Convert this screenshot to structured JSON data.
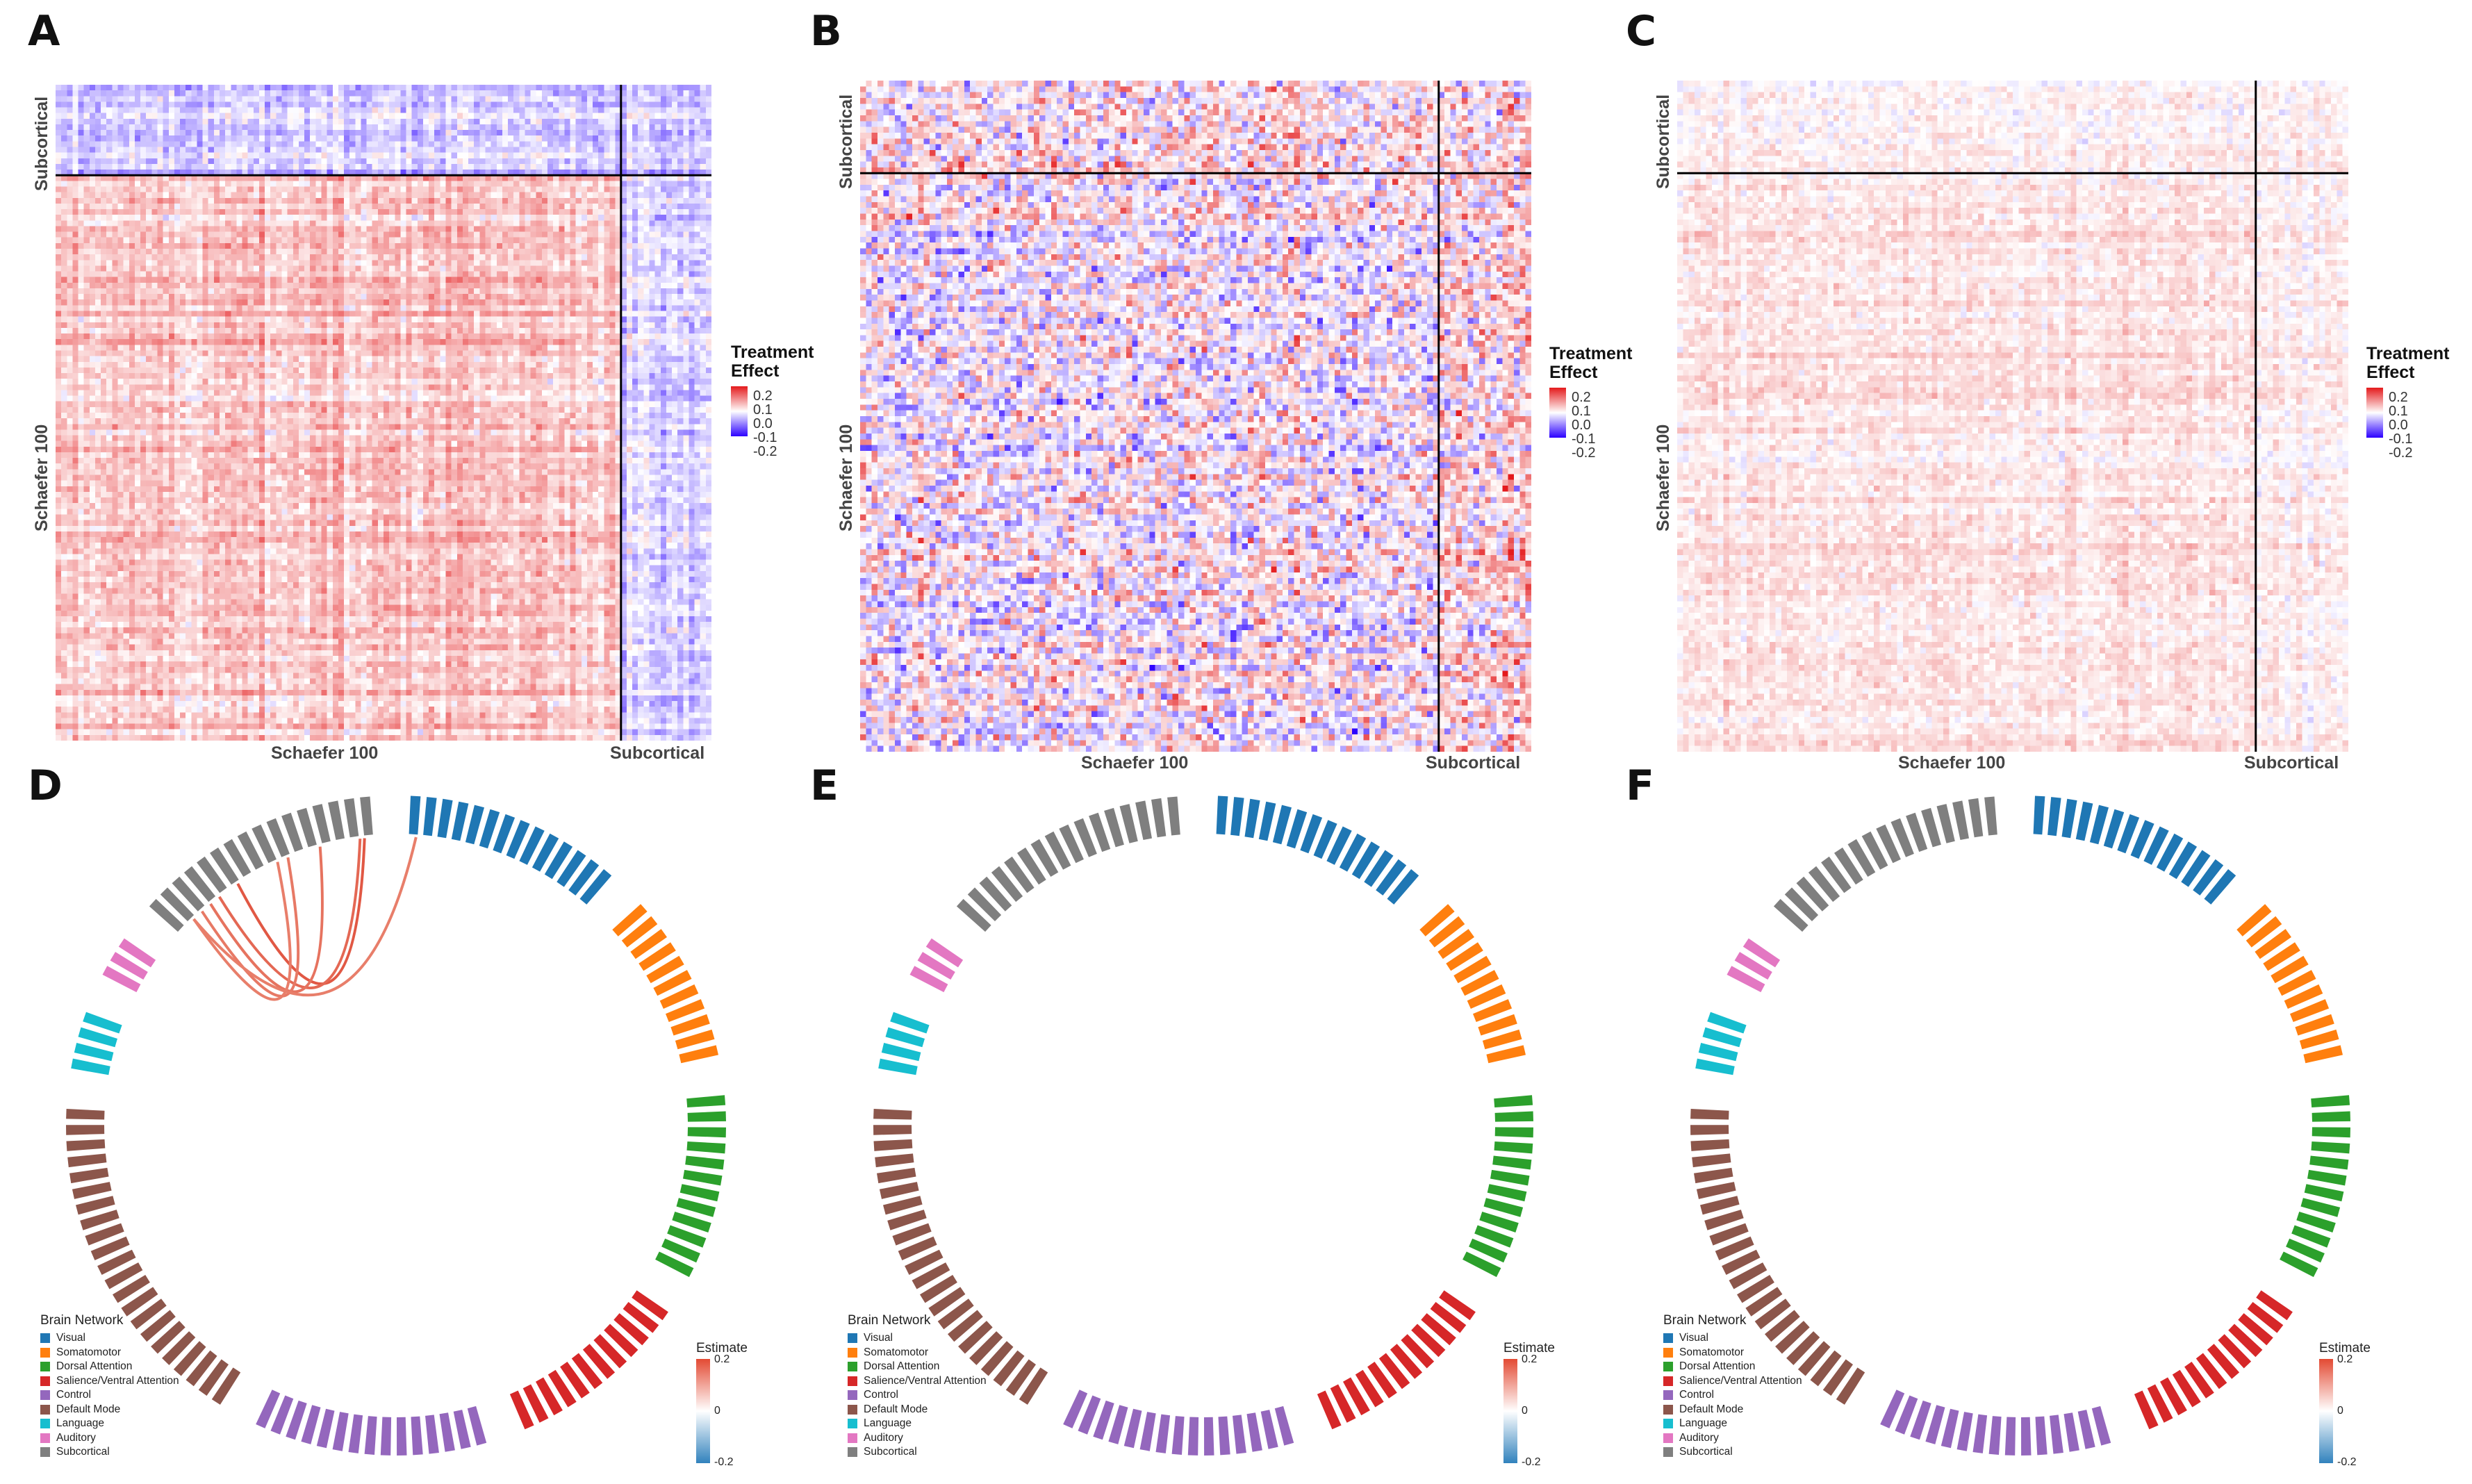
{
  "panels": {
    "A": {
      "letter": "A",
      "xlabel_main": "Schaefer 100",
      "xlabel_sub": "Subcortical",
      "ylabel_main": "Schaefer 100",
      "ylabel_sub": "Subcortical"
    },
    "B": {
      "letter": "B",
      "xlabel_main": "Schaefer 100",
      "xlabel_sub": "Subcortical",
      "ylabel_main": "Schaefer 100",
      "ylabel_sub": "Subcortical"
    },
    "C": {
      "letter": "C",
      "xlabel_main": "Schaefer 100",
      "xlabel_sub": "Subcortical",
      "ylabel_main": "Schaefer 100",
      "ylabel_sub": "Subcortical"
    },
    "D": {
      "letter": "D"
    },
    "E": {
      "letter": "E"
    },
    "F": {
      "letter": "F"
    }
  },
  "treatment_legend": {
    "title_line1": "Treatment",
    "title_line2": "Effect",
    "ticks": [
      "0.2",
      "0.1",
      "0.0",
      "-0.1",
      "-0.2"
    ],
    "colors": {
      "high": "#e41a1c",
      "mid": "#ffffff",
      "low": "#2b00ff"
    }
  },
  "brain_network_legend": {
    "title": "Brain Network",
    "items": [
      {
        "label": "Visual",
        "color": "#1f77b4"
      },
      {
        "label": "Somatomotor",
        "color": "#ff7f0e"
      },
      {
        "label": "Dorsal Attention",
        "color": "#2ca02c"
      },
      {
        "label": "Salience/Ventral Attention",
        "color": "#d62728"
      },
      {
        "label": "Control",
        "color": "#9467bd"
      },
      {
        "label": "Default Mode",
        "color": "#8c564b"
      },
      {
        "label": "Language",
        "color": "#17becf"
      },
      {
        "label": "Auditory",
        "color": "#e377c2"
      },
      {
        "label": "Subcortical",
        "color": "#7f7f7f"
      }
    ]
  },
  "estimate_legend": {
    "title": "Estimate",
    "ticks": [
      "0.2",
      "0",
      "-0.2"
    ],
    "colors": {
      "high": "#e34a33",
      "mid": "#ffffff",
      "low": "#3182bd"
    }
  },
  "chart_data": [
    {
      "type": "heatmap",
      "panel": "A",
      "title": "",
      "matrix_size": 116,
      "blocks": [
        "Schaefer 100",
        "Subcortical"
      ],
      "block_sizes": [
        100,
        16
      ],
      "value_range": [
        -0.2,
        0.2
      ],
      "note": "Mostly positive (light red) treatment effects within Schaefer 100, mostly negative (light blue) in subcortical columns"
    },
    {
      "type": "heatmap",
      "panel": "B",
      "title": "",
      "matrix_size": 116,
      "blocks": [
        "Schaefer 100",
        "Subcortical"
      ],
      "block_sizes": [
        100,
        16
      ],
      "value_range": [
        -0.2,
        0.2
      ],
      "note": "Strong mixed positive and negative treatment effects"
    },
    {
      "type": "heatmap",
      "panel": "C",
      "title": "",
      "matrix_size": 116,
      "blocks": [
        "Schaefer 100",
        "Subcortical"
      ],
      "block_sizes": [
        100,
        16
      ],
      "value_range": [
        -0.2,
        0.2
      ],
      "note": "Weak mostly light red treatment effects"
    },
    {
      "type": "chord",
      "panel": "D",
      "networks": [
        {
          "name": "Visual",
          "segments": 14
        },
        {
          "name": "Somatomotor",
          "segments": 11
        },
        {
          "name": "Dorsal Attention",
          "segments": 12
        },
        {
          "name": "Salience/Ventral Attention",
          "segments": 12
        },
        {
          "name": "Control",
          "segments": 15
        },
        {
          "name": "Default Mode",
          "segments": 22
        },
        {
          "name": "Language",
          "segments": 4
        },
        {
          "name": "Auditory",
          "segments": 3
        },
        {
          "name": "Subcortical",
          "segments": 16
        }
      ],
      "links": [
        {
          "source": "Subcortical",
          "target": "Subcortical",
          "estimate": 0.15
        },
        {
          "source": "Subcortical",
          "target": "Subcortical",
          "estimate": 0.12
        },
        {
          "source": "Subcortical",
          "target": "Subcortical",
          "estimate": 0.1
        },
        {
          "source": "Subcortical",
          "target": "Subcortical",
          "estimate": 0.09
        },
        {
          "source": "Subcortical",
          "target": "Subcortical",
          "estimate": 0.08
        },
        {
          "source": "Subcortical",
          "target": "Visual",
          "estimate": 0.08
        }
      ]
    },
    {
      "type": "chord",
      "panel": "E",
      "networks": [
        {
          "name": "Visual",
          "segments": 14
        },
        {
          "name": "Somatomotor",
          "segments": 11
        },
        {
          "name": "Dorsal Attention",
          "segments": 12
        },
        {
          "name": "Salience/Ventral Attention",
          "segments": 12
        },
        {
          "name": "Control",
          "segments": 15
        },
        {
          "name": "Default Mode",
          "segments": 22
        },
        {
          "name": "Language",
          "segments": 4
        },
        {
          "name": "Auditory",
          "segments": 3
        },
        {
          "name": "Subcortical",
          "segments": 16
        }
      ],
      "links": []
    },
    {
      "type": "chord",
      "panel": "F",
      "networks": [
        {
          "name": "Visual",
          "segments": 14
        },
        {
          "name": "Somatomotor",
          "segments": 11
        },
        {
          "name": "Dorsal Attention",
          "segments": 12
        },
        {
          "name": "Salience/Ventral Attention",
          "segments": 12
        },
        {
          "name": "Control",
          "segments": 15
        },
        {
          "name": "Default Mode",
          "segments": 22
        },
        {
          "name": "Language",
          "segments": 4
        },
        {
          "name": "Auditory",
          "segments": 3
        },
        {
          "name": "Subcortical",
          "segments": 16
        }
      ],
      "links": []
    }
  ]
}
